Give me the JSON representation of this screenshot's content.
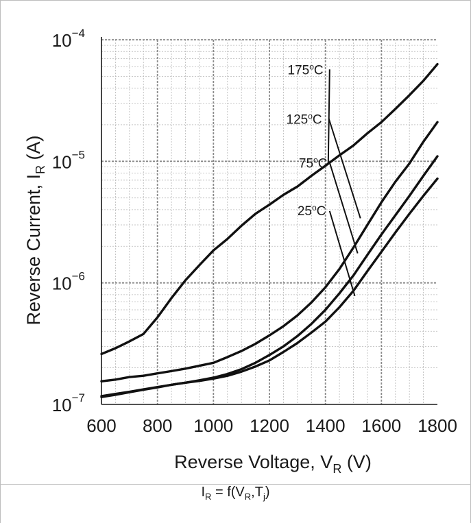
{
  "chart_data": {
    "type": "line",
    "xlabel": "Reverse Voltage, V",
    "xlabel_sub": "R",
    "xlabel_unit": " (V)",
    "ylabel": "Reverse Current, I",
    "ylabel_sub": "R",
    "ylabel_unit": " (A)",
    "xlim": [
      600,
      1800
    ],
    "ylim": [
      1e-07,
      0.0001
    ],
    "yscale": "log",
    "x_ticks": [
      600,
      800,
      1000,
      1200,
      1400,
      1600,
      1800
    ],
    "y_ticks": [
      {
        "value": 1e-07,
        "base": "10",
        "exp": "−7"
      },
      {
        "value": 1e-06,
        "base": "10",
        "exp": "−6"
      },
      {
        "value": 1e-05,
        "base": "10",
        "exp": "−5"
      },
      {
        "value": 0.0001,
        "base": "10",
        "exp": "−4"
      }
    ],
    "grid": true,
    "series": [
      {
        "name": "175°C",
        "points": [
          [
            600,
            2.6e-07
          ],
          [
            650,
            2.9e-07
          ],
          [
            700,
            3.3e-07
          ],
          [
            750,
            3.8e-07
          ],
          [
            800,
            5.2e-07
          ],
          [
            850,
            7.5e-07
          ],
          [
            900,
            1.05e-06
          ],
          [
            950,
            1.4e-06
          ],
          [
            1000,
            1.85e-06
          ],
          [
            1050,
            2.3e-06
          ],
          [
            1100,
            2.95e-06
          ],
          [
            1150,
            3.7e-06
          ],
          [
            1200,
            4.4e-06
          ],
          [
            1250,
            5.3e-06
          ],
          [
            1300,
            6.2e-06
          ],
          [
            1350,
            7.6e-06
          ],
          [
            1400,
            9.2e-06
          ],
          [
            1450,
            1.12e-05
          ],
          [
            1500,
            1.35e-05
          ],
          [
            1550,
            1.7e-05
          ],
          [
            1600,
            2.1e-05
          ],
          [
            1650,
            2.7e-05
          ],
          [
            1700,
            3.5e-05
          ],
          [
            1750,
            4.6e-05
          ],
          [
            1800,
            6.3e-05
          ]
        ]
      },
      {
        "name": "125°C",
        "points": [
          [
            600,
            1.55e-07
          ],
          [
            650,
            1.6e-07
          ],
          [
            700,
            1.68e-07
          ],
          [
            750,
            1.72e-07
          ],
          [
            800,
            1.8e-07
          ],
          [
            850,
            1.88e-07
          ],
          [
            900,
            1.97e-07
          ],
          [
            950,
            2.08e-07
          ],
          [
            1000,
            2.2e-07
          ],
          [
            1050,
            2.45e-07
          ],
          [
            1100,
            2.75e-07
          ],
          [
            1150,
            3.15e-07
          ],
          [
            1200,
            3.7e-07
          ],
          [
            1250,
            4.4e-07
          ],
          [
            1300,
            5.4e-07
          ],
          [
            1350,
            6.9e-07
          ],
          [
            1400,
            9.2e-07
          ],
          [
            1450,
            1.3e-06
          ],
          [
            1500,
            1.95e-06
          ],
          [
            1550,
            3e-06
          ],
          [
            1600,
            4.6e-06
          ],
          [
            1650,
            6.8e-06
          ],
          [
            1700,
            9.6e-06
          ],
          [
            1750,
            1.45e-05
          ],
          [
            1800,
            2.1e-05
          ]
        ]
      },
      {
        "name": "75°C",
        "points": [
          [
            600,
            1.17e-07
          ],
          [
            650,
            1.22e-07
          ],
          [
            700,
            1.27e-07
          ],
          [
            750,
            1.33e-07
          ],
          [
            800,
            1.39e-07
          ],
          [
            850,
            1.45e-07
          ],
          [
            900,
            1.51e-07
          ],
          [
            950,
            1.58e-07
          ],
          [
            1000,
            1.66e-07
          ],
          [
            1050,
            1.78e-07
          ],
          [
            1100,
            1.95e-07
          ],
          [
            1150,
            2.2e-07
          ],
          [
            1200,
            2.55e-07
          ],
          [
            1250,
            3e-07
          ],
          [
            1300,
            3.65e-07
          ],
          [
            1350,
            4.6e-07
          ],
          [
            1400,
            6e-07
          ],
          [
            1450,
            8.2e-07
          ],
          [
            1500,
            1.15e-06
          ],
          [
            1550,
            1.7e-06
          ],
          [
            1600,
            2.5e-06
          ],
          [
            1650,
            3.6e-06
          ],
          [
            1700,
            5.2e-06
          ],
          [
            1750,
            7.6e-06
          ],
          [
            1800,
            1.1e-05
          ]
        ]
      },
      {
        "name": "25°C",
        "points": [
          [
            600,
            1.15e-07
          ],
          [
            650,
            1.2e-07
          ],
          [
            700,
            1.26e-07
          ],
          [
            750,
            1.32e-07
          ],
          [
            800,
            1.38e-07
          ],
          [
            850,
            1.45e-07
          ],
          [
            900,
            1.51e-07
          ],
          [
            950,
            1.56e-07
          ],
          [
            1000,
            1.63e-07
          ],
          [
            1050,
            1.72e-07
          ],
          [
            1100,
            1.86e-07
          ],
          [
            1150,
            2.05e-07
          ],
          [
            1200,
            2.3e-07
          ],
          [
            1250,
            2.7e-07
          ],
          [
            1300,
            3.2e-07
          ],
          [
            1350,
            3.9e-07
          ],
          [
            1400,
            4.8e-07
          ],
          [
            1450,
            6.3e-07
          ],
          [
            1500,
            8.6e-07
          ],
          [
            1550,
            1.25e-06
          ],
          [
            1600,
            1.8e-06
          ],
          [
            1650,
            2.6e-06
          ],
          [
            1700,
            3.7e-06
          ],
          [
            1750,
            5.2e-06
          ],
          [
            1800,
            7.2e-06
          ]
        ]
      }
    ],
    "annotations": [
      {
        "series": "175°C",
        "base": "175",
        "deg": "o",
        "unit": "C",
        "text_at": [
          1265,
          5.6e-05
        ],
        "line_from": [
          1415,
          5.7e-05
        ],
        "line_to": [
          1410,
          9.4e-06
        ]
      },
      {
        "series": "125°C",
        "base": "125",
        "deg": "o",
        "unit": "C",
        "text_at": [
          1260,
          2.2e-05
        ],
        "line_from": [
          1412,
          2.25e-05
        ],
        "line_to": [
          1525,
          3.4e-06
        ]
      },
      {
        "series": "75°C",
        "base": "75",
        "deg": "o",
        "unit": "C",
        "text_at": [
          1305,
          9.6e-06
        ],
        "line_from": [
          1416,
          9.6e-06
        ],
        "line_to": [
          1515,
          1.75e-06
        ]
      },
      {
        "series": "25°C",
        "base": "25",
        "deg": "o",
        "unit": "C",
        "text_at": [
          1300,
          3.9e-06
        ],
        "line_from": [
          1415,
          3.9e-06
        ],
        "line_to": [
          1505,
          7.8e-07
        ]
      }
    ]
  },
  "caption": {
    "main": "I",
    "main_sub": "R",
    "eq": " = f(V",
    "arg_sub": "R",
    "mid": ",T",
    "arg2_sub": "j",
    "close": ")"
  }
}
